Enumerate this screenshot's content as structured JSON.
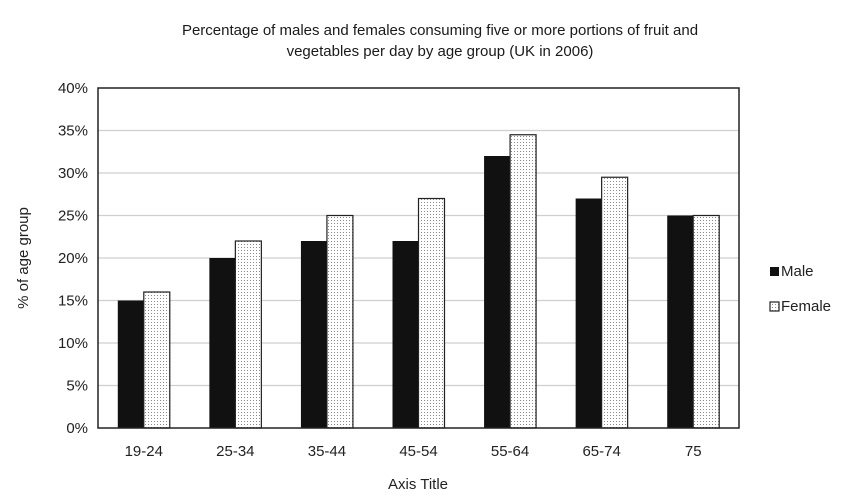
{
  "chart_data": {
    "type": "bar",
    "title_lines": [
      "Percentage of males and females consuming five or more portions of fruit and",
      "vegetables per day by age group (UK in 2006)"
    ],
    "xlabel": "Axis Title",
    "ylabel": "% of age group",
    "categories": [
      "19-24",
      "25-34",
      "35-44",
      "45-54",
      "55-64",
      "65-74",
      "75"
    ],
    "series": [
      {
        "name": "Male",
        "values": [
          15,
          20,
          22,
          22,
          32,
          27,
          25
        ],
        "color": "#111111",
        "pattern": "solid"
      },
      {
        "name": "Female",
        "values": [
          16,
          22,
          25,
          27,
          34.5,
          29.5,
          25
        ],
        "color": "#ffffff",
        "pattern": "dotted"
      }
    ],
    "ylim": [
      0,
      40
    ],
    "yticks": [
      "0%",
      "5%",
      "10%",
      "15%",
      "20%",
      "25%",
      "30%",
      "35%",
      "40%"
    ],
    "grid": true,
    "legend_position": "right"
  }
}
